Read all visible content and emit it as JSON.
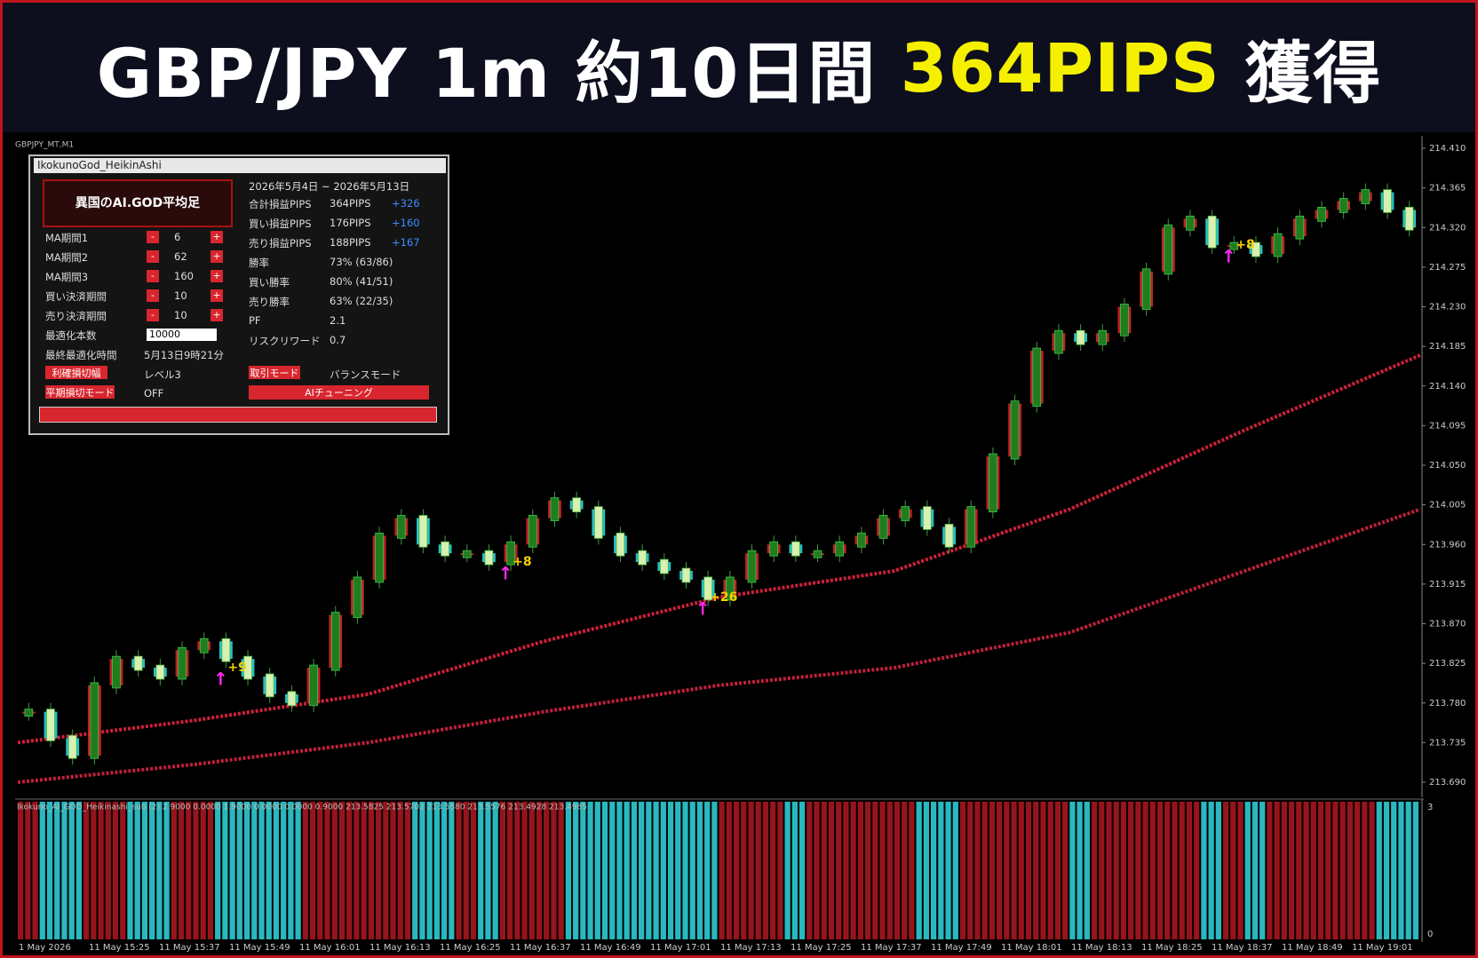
{
  "header": {
    "part1": "GBP/JPY 1m 約10日間",
    "highlight": "364PIPS",
    "part2": "獲得"
  },
  "chart_label": "GBPJPY_MT,M1",
  "panel": {
    "title": "IkokunoGod_HeikinAshi",
    "logo": "異国のAI.GOD平均足",
    "params": [
      {
        "label": "MA期間1",
        "value": 6
      },
      {
        "label": "MA期間2",
        "value": 62
      },
      {
        "label": "MA期間3",
        "value": 160
      },
      {
        "label": "買い決済期間",
        "value": 10
      },
      {
        "label": "売り決済期間",
        "value": 10
      }
    ],
    "minus": "-",
    "plus": "+",
    "opt_label": "最適化本数",
    "opt_value": "10000",
    "last_label": "最終最適化時間",
    "last_value": "5月13日9時21分",
    "tp_button": "利確損切幅",
    "tp_value": "レベル3",
    "sl_button": "平期損切モード",
    "sl_value": "OFF",
    "range": "2026年5月4日 ~ 2026年5月13日",
    "stats": [
      {
        "label": "合計損益PIPS",
        "value": "364PIPS",
        "delta": "+326"
      },
      {
        "label": "買い損益PIPS",
        "value": "176PIPS",
        "delta": "+160"
      },
      {
        "label": "売り損益PIPS",
        "value": "188PIPS",
        "delta": "+167"
      },
      {
        "label": "勝率",
        "value": "73% (63/86)"
      },
      {
        "label": "買い勝率",
        "value": "80% (41/51)"
      },
      {
        "label": "売り勝率",
        "value": "63% (22/35)"
      },
      {
        "label": "PF",
        "value": "2.1"
      },
      {
        "label": "リスクリワード",
        "value": "0.7"
      }
    ],
    "mode_button": "取引モード",
    "mode_value": "バランスモード",
    "ai_button": "AIチューニング"
  },
  "chart_data": {
    "type": "candlestick",
    "ylim": [
      213.69,
      214.41
    ],
    "yticks": [
      {
        "value": 214.41,
        "label": "214.410"
      },
      {
        "value": 214.365,
        "label": "214.365"
      },
      {
        "value": 214.32,
        "label": "214.320"
      },
      {
        "value": 214.275,
        "label": "214.275"
      },
      {
        "value": 214.23,
        "label": "214.230"
      },
      {
        "value": 214.185,
        "label": "214.185"
      },
      {
        "value": 214.14,
        "label": "214.140"
      },
      {
        "value": 214.095,
        "label": "214.095"
      },
      {
        "value": 214.05,
        "label": "214.050"
      },
      {
        "value": 214.005,
        "label": "214.005"
      },
      {
        "value": 213.96,
        "label": "213.960"
      },
      {
        "value": 213.915,
        "label": "213.915"
      },
      {
        "value": 213.87,
        "label": "213.870"
      },
      {
        "value": 213.825,
        "label": "213.825"
      },
      {
        "value": 213.78,
        "label": "213.780"
      },
      {
        "value": 213.735,
        "label": "213.735"
      },
      {
        "value": 213.69,
        "label": "213.690"
      }
    ],
    "closes": [
      213.77,
      213.74,
      213.72,
      213.8,
      213.83,
      213.82,
      213.81,
      213.84,
      213.85,
      213.83,
      213.81,
      213.79,
      213.78,
      213.82,
      213.88,
      213.92,
      213.97,
      213.99,
      213.96,
      213.95,
      213.95,
      213.94,
      213.96,
      213.99,
      214.01,
      214.0,
      213.97,
      213.95,
      213.94,
      213.93,
      213.92,
      213.9,
      213.92,
      213.95,
      213.96,
      213.95,
      213.95,
      213.96,
      213.97,
      213.99,
      214.0,
      213.98,
      213.96,
      214.0,
      214.06,
      214.12,
      214.18,
      214.2,
      214.19,
      214.2,
      214.23,
      214.27,
      214.32,
      214.33,
      214.3,
      214.3,
      214.29,
      214.31,
      214.33,
      214.34,
      214.35,
      214.36,
      214.34,
      214.32
    ],
    "series": [
      {
        "name": "MA期間2",
        "color": "#d0203c",
        "values": [
          213.735,
          213.76,
          213.79,
          213.85,
          213.9,
          213.93,
          214.0,
          214.09,
          214.175
        ]
      },
      {
        "name": "MA期間3",
        "color": "#c0203c",
        "values": [
          213.69,
          213.71,
          213.735,
          213.77,
          213.8,
          213.82,
          213.86,
          213.93,
          214.0
        ]
      }
    ],
    "signals": [
      {
        "label": "+9",
        "index": 9,
        "price": 213.82
      },
      {
        "label": "+8",
        "index": 22,
        "price": 213.94
      },
      {
        "label": "+26",
        "index": 31,
        "price": 213.9
      },
      {
        "label": "+8",
        "index": 55,
        "price": 214.3
      }
    ],
    "x_labels": [
      "1 May 2026",
      "11 May 15:25",
      "11 May 15:37",
      "11 May 15:49",
      "11 May 16:01",
      "11 May 16:13",
      "11 May 16:25",
      "11 May 16:37",
      "11 May 16:49",
      "11 May 17:01",
      "11 May 17:13",
      "11 May 17:25",
      "11 May 17:37",
      "11 May 17:49",
      "11 May 18:01",
      "11 May 18:13",
      "11 May 18:25",
      "11 May 18:37",
      "11 May 18:49",
      "11 May 19:01"
    ],
    "sub": {
      "legend": "Ikokuno_AI_GOD_Heikinashi_sub (2) 2.9000 0.0000 1.9000 0.0000 0.0000 0.9000 213.5825 213.5702 213.5580 213.5576 213.4928 213.4985",
      "ylim": [
        0,
        3
      ],
      "yticks": [
        3,
        0
      ]
    }
  }
}
